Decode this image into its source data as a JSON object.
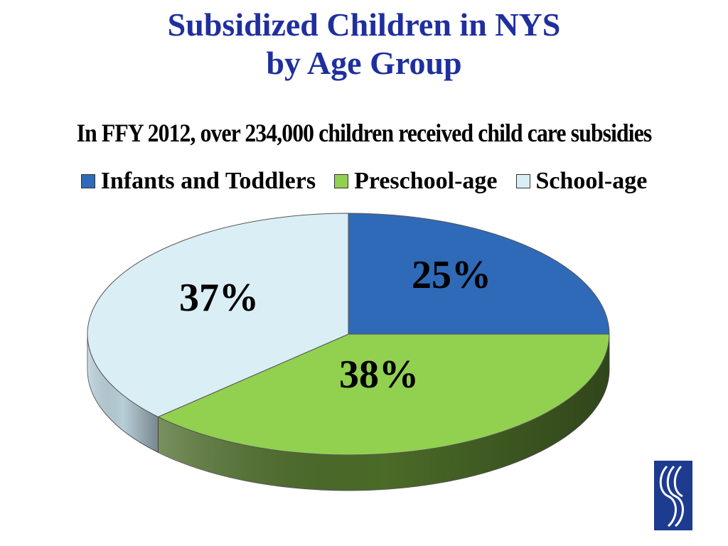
{
  "title_line1": "Subsidized Children in NYS",
  "title_line2": "by Age Group",
  "chart_data": {
    "type": "pie",
    "title": "Subsidized Children in NYS by Age Group",
    "subtitle": "In FFY 2012, over 234,000 children received child care subsidies",
    "legend_position": "top",
    "slices": [
      {
        "label": "Infants and Toddlers",
        "value": 25,
        "display": "25%",
        "color": "#2f6ab8",
        "side": "#1d4d8c"
      },
      {
        "label": "Preschool-age",
        "value": 38,
        "display": "38%",
        "color": "#92d050",
        "side": "#4b6b28"
      },
      {
        "label": "School-age",
        "value": 37,
        "display": "37%",
        "color": "#daeef5",
        "side": "#b8cfd8"
      }
    ]
  },
  "logo": {
    "icon": "agency-logo-icon"
  }
}
